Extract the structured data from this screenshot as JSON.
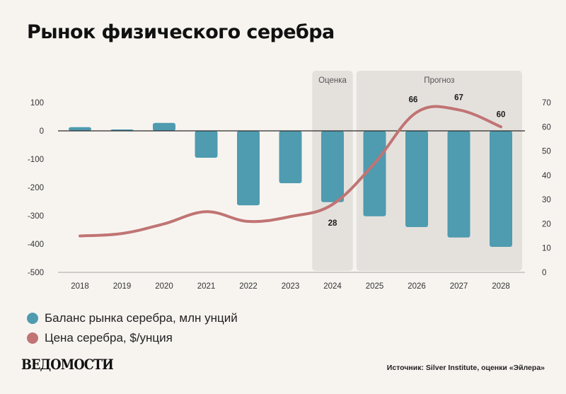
{
  "title": "Рынок физического серебра",
  "chart_data": {
    "type": "bar+line",
    "title": "Рынок физического серебра",
    "categories": [
      "2018",
      "2019",
      "2020",
      "2021",
      "2022",
      "2023",
      "2024",
      "2025",
      "2026",
      "2027",
      "2028"
    ],
    "series": [
      {
        "name": "Баланс рынка серебра, млн унций",
        "type": "bar",
        "axis": "left",
        "color": "#4f9bb0",
        "values": [
          13,
          5,
          28,
          -95,
          -263,
          -185,
          -252,
          -302,
          -340,
          -377,
          -410
        ]
      },
      {
        "name": "Цена серебра, $/унция",
        "type": "line",
        "axis": "right",
        "color": "#c07473",
        "values": [
          15,
          16,
          20,
          25,
          21,
          23,
          28,
          45,
          66,
          67,
          60
        ],
        "labels": [
          null,
          null,
          null,
          null,
          null,
          null,
          "28",
          null,
          "66",
          "67",
          "60"
        ]
      }
    ],
    "y_left": {
      "ticks": [
        100,
        0,
        -100,
        -200,
        -300,
        -400,
        -500
      ],
      "tick_labels": [
        "100",
        "0",
        "-100",
        "-200",
        "-300",
        "-400",
        "-500"
      ],
      "range": [
        -500,
        100
      ]
    },
    "y_right": {
      "ticks": [
        70,
        60,
        50,
        40,
        30,
        20,
        10,
        0
      ],
      "tick_labels": [
        "70",
        "60",
        "50",
        "40",
        "30",
        "20",
        "10",
        "0"
      ],
      "range": [
        0,
        70
      ]
    },
    "shaded_regions": [
      {
        "label": "Оценка",
        "categories": [
          "2024"
        ]
      },
      {
        "label": "Прогноз",
        "categories": [
          "2025",
          "2026",
          "2027",
          "2028"
        ]
      }
    ],
    "zero_line": true,
    "grid": false,
    "legend_position": "bottom-left"
  },
  "legend": [
    {
      "label": "Баланс рынка серебра, млн унций",
      "color": "#4f9bb0"
    },
    {
      "label": "Цена серебра, $/унция",
      "color": "#c07473"
    }
  ],
  "logo": "ВЕДОМОСТИ",
  "source": "Источник: Silver Institute, оценки «Эйлера»"
}
